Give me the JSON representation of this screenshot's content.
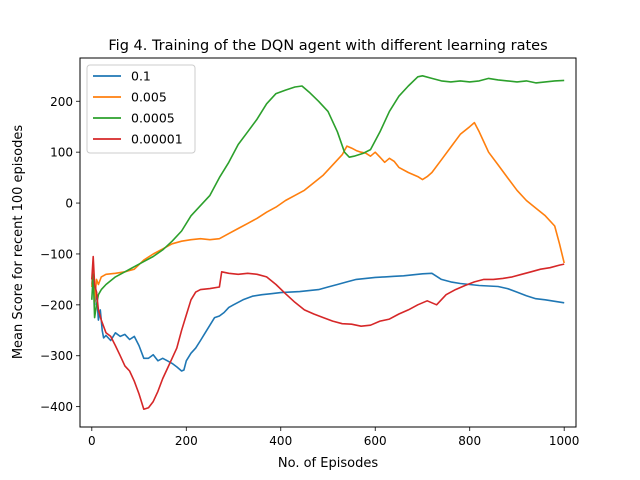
{
  "chart_data": {
    "type": "line",
    "title": "Fig 4. Training of the DQN agent with different learning rates",
    "xlabel": "No. of Episodes",
    "ylabel": "Mean Score for recent 100 episodes",
    "xlim": [
      -25,
      1025
    ],
    "ylim": [
      -440,
      285
    ],
    "xticks": [
      0,
      200,
      400,
      600,
      800,
      1000
    ],
    "yticks": [
      -400,
      -300,
      -200,
      -100,
      0,
      100,
      200
    ],
    "grid": false,
    "legend_position": "top-left",
    "series": [
      {
        "name": "0.1",
        "color": "#1f77b4",
        "points": [
          [
            0,
            -160
          ],
          [
            3,
            -120
          ],
          [
            6,
            -200
          ],
          [
            10,
            -175
          ],
          [
            14,
            -230
          ],
          [
            18,
            -210
          ],
          [
            22,
            -250
          ],
          [
            25,
            -265
          ],
          [
            30,
            -260
          ],
          [
            40,
            -270
          ],
          [
            50,
            -255
          ],
          [
            60,
            -262
          ],
          [
            70,
            -258
          ],
          [
            80,
            -268
          ],
          [
            90,
            -262
          ],
          [
            100,
            -280
          ],
          [
            110,
            -305
          ],
          [
            120,
            -305
          ],
          [
            130,
            -298
          ],
          [
            140,
            -310
          ],
          [
            150,
            -305
          ],
          [
            160,
            -310
          ],
          [
            170,
            -315
          ],
          [
            180,
            -322
          ],
          [
            190,
            -330
          ],
          [
            195,
            -328
          ],
          [
            200,
            -310
          ],
          [
            210,
            -295
          ],
          [
            220,
            -285
          ],
          [
            230,
            -270
          ],
          [
            240,
            -255
          ],
          [
            250,
            -240
          ],
          [
            260,
            -225
          ],
          [
            270,
            -222
          ],
          [
            280,
            -215
          ],
          [
            290,
            -205
          ],
          [
            300,
            -200
          ],
          [
            320,
            -190
          ],
          [
            340,
            -183
          ],
          [
            360,
            -180
          ],
          [
            380,
            -178
          ],
          [
            400,
            -176
          ],
          [
            420,
            -175
          ],
          [
            440,
            -174
          ],
          [
            460,
            -172
          ],
          [
            480,
            -170
          ],
          [
            500,
            -165
          ],
          [
            520,
            -160
          ],
          [
            540,
            -155
          ],
          [
            560,
            -150
          ],
          [
            580,
            -148
          ],
          [
            600,
            -146
          ],
          [
            620,
            -145
          ],
          [
            640,
            -144
          ],
          [
            660,
            -143
          ],
          [
            680,
            -141
          ],
          [
            700,
            -139
          ],
          [
            720,
            -138
          ],
          [
            740,
            -150
          ],
          [
            760,
            -155
          ],
          [
            780,
            -158
          ],
          [
            800,
            -160
          ],
          [
            820,
            -162
          ],
          [
            840,
            -163
          ],
          [
            860,
            -164
          ],
          [
            880,
            -168
          ],
          [
            900,
            -175
          ],
          [
            920,
            -182
          ],
          [
            940,
            -188
          ],
          [
            960,
            -190
          ],
          [
            980,
            -193
          ],
          [
            1000,
            -196
          ]
        ]
      },
      {
        "name": "0.005",
        "color": "#ff7f0e",
        "points": [
          [
            0,
            -165
          ],
          [
            3,
            -130
          ],
          [
            6,
            -195
          ],
          [
            10,
            -150
          ],
          [
            14,
            -160
          ],
          [
            20,
            -145
          ],
          [
            30,
            -140
          ],
          [
            50,
            -138
          ],
          [
            70,
            -135
          ],
          [
            90,
            -130
          ],
          [
            110,
            -112
          ],
          [
            130,
            -100
          ],
          [
            150,
            -90
          ],
          [
            170,
            -80
          ],
          [
            190,
            -75
          ],
          [
            210,
            -72
          ],
          [
            230,
            -70
          ],
          [
            250,
            -72
          ],
          [
            270,
            -70
          ],
          [
            290,
            -60
          ],
          [
            310,
            -50
          ],
          [
            330,
            -40
          ],
          [
            350,
            -30
          ],
          [
            370,
            -18
          ],
          [
            390,
            -8
          ],
          [
            410,
            5
          ],
          [
            430,
            15
          ],
          [
            450,
            25
          ],
          [
            470,
            40
          ],
          [
            490,
            55
          ],
          [
            510,
            75
          ],
          [
            530,
            95
          ],
          [
            540,
            112
          ],
          [
            550,
            108
          ],
          [
            560,
            103
          ],
          [
            570,
            100
          ],
          [
            580,
            98
          ],
          [
            590,
            92
          ],
          [
            600,
            100
          ],
          [
            610,
            90
          ],
          [
            620,
            80
          ],
          [
            630,
            88
          ],
          [
            640,
            82
          ],
          [
            650,
            70
          ],
          [
            670,
            60
          ],
          [
            690,
            52
          ],
          [
            700,
            46
          ],
          [
            710,
            52
          ],
          [
            720,
            60
          ],
          [
            740,
            85
          ],
          [
            760,
            110
          ],
          [
            780,
            135
          ],
          [
            800,
            150
          ],
          [
            810,
            158
          ],
          [
            820,
            140
          ],
          [
            830,
            120
          ],
          [
            840,
            100
          ],
          [
            860,
            75
          ],
          [
            880,
            50
          ],
          [
            900,
            25
          ],
          [
            920,
            5
          ],
          [
            940,
            -10
          ],
          [
            960,
            -25
          ],
          [
            980,
            -45
          ],
          [
            990,
            -80
          ],
          [
            1000,
            -118
          ]
        ]
      },
      {
        "name": "0.0005",
        "color": "#2ca02c",
        "points": [
          [
            0,
            -190
          ],
          [
            3,
            -140
          ],
          [
            6,
            -225
          ],
          [
            10,
            -200
          ],
          [
            14,
            -180
          ],
          [
            20,
            -170
          ],
          [
            30,
            -160
          ],
          [
            50,
            -145
          ],
          [
            70,
            -135
          ],
          [
            90,
            -125
          ],
          [
            110,
            -115
          ],
          [
            130,
            -105
          ],
          [
            150,
            -92
          ],
          [
            170,
            -75
          ],
          [
            190,
            -55
          ],
          [
            210,
            -25
          ],
          [
            230,
            -5
          ],
          [
            250,
            15
          ],
          [
            270,
            50
          ],
          [
            290,
            80
          ],
          [
            310,
            115
          ],
          [
            330,
            140
          ],
          [
            350,
            165
          ],
          [
            370,
            195
          ],
          [
            390,
            215
          ],
          [
            410,
            222
          ],
          [
            430,
            228
          ],
          [
            445,
            230
          ],
          [
            460,
            218
          ],
          [
            480,
            200
          ],
          [
            500,
            180
          ],
          [
            520,
            140
          ],
          [
            535,
            100
          ],
          [
            545,
            90
          ],
          [
            555,
            92
          ],
          [
            575,
            98
          ],
          [
            590,
            105
          ],
          [
            610,
            140
          ],
          [
            630,
            180
          ],
          [
            650,
            210
          ],
          [
            670,
            230
          ],
          [
            690,
            248
          ],
          [
            700,
            250
          ],
          [
            720,
            245
          ],
          [
            740,
            240
          ],
          [
            760,
            238
          ],
          [
            780,
            240
          ],
          [
            800,
            238
          ],
          [
            820,
            240
          ],
          [
            840,
            245
          ],
          [
            860,
            242
          ],
          [
            880,
            240
          ],
          [
            900,
            238
          ],
          [
            920,
            240
          ],
          [
            940,
            236
          ],
          [
            960,
            238
          ],
          [
            980,
            240
          ],
          [
            1000,
            241
          ]
        ]
      },
      {
        "name": "0.00001",
        "color": "#d62728",
        "points": [
          [
            0,
            -150
          ],
          [
            3,
            -105
          ],
          [
            6,
            -160
          ],
          [
            10,
            -175
          ],
          [
            14,
            -210
          ],
          [
            20,
            -230
          ],
          [
            30,
            -255
          ],
          [
            40,
            -262
          ],
          [
            50,
            -280
          ],
          [
            60,
            -300
          ],
          [
            70,
            -320
          ],
          [
            80,
            -330
          ],
          [
            90,
            -350
          ],
          [
            100,
            -375
          ],
          [
            110,
            -405
          ],
          [
            120,
            -402
          ],
          [
            130,
            -390
          ],
          [
            140,
            -370
          ],
          [
            150,
            -345
          ],
          [
            160,
            -325
          ],
          [
            170,
            -305
          ],
          [
            180,
            -285
          ],
          [
            190,
            -250
          ],
          [
            200,
            -220
          ],
          [
            210,
            -190
          ],
          [
            220,
            -175
          ],
          [
            230,
            -170
          ],
          [
            250,
            -168
          ],
          [
            270,
            -165
          ],
          [
            275,
            -135
          ],
          [
            290,
            -138
          ],
          [
            310,
            -140
          ],
          [
            330,
            -138
          ],
          [
            350,
            -140
          ],
          [
            370,
            -145
          ],
          [
            390,
            -160
          ],
          [
            410,
            -178
          ],
          [
            430,
            -195
          ],
          [
            450,
            -210
          ],
          [
            470,
            -218
          ],
          [
            490,
            -225
          ],
          [
            510,
            -232
          ],
          [
            530,
            -237
          ],
          [
            550,
            -238
          ],
          [
            570,
            -242
          ],
          [
            590,
            -240
          ],
          [
            610,
            -232
          ],
          [
            630,
            -228
          ],
          [
            650,
            -218
          ],
          [
            670,
            -210
          ],
          [
            690,
            -200
          ],
          [
            710,
            -192
          ],
          [
            730,
            -200
          ],
          [
            750,
            -180
          ],
          [
            770,
            -170
          ],
          [
            790,
            -162
          ],
          [
            810,
            -155
          ],
          [
            830,
            -150
          ],
          [
            850,
            -150
          ],
          [
            870,
            -148
          ],
          [
            890,
            -145
          ],
          [
            910,
            -140
          ],
          [
            930,
            -135
          ],
          [
            950,
            -130
          ],
          [
            970,
            -127
          ],
          [
            990,
            -122
          ],
          [
            1000,
            -120
          ]
        ]
      }
    ]
  }
}
